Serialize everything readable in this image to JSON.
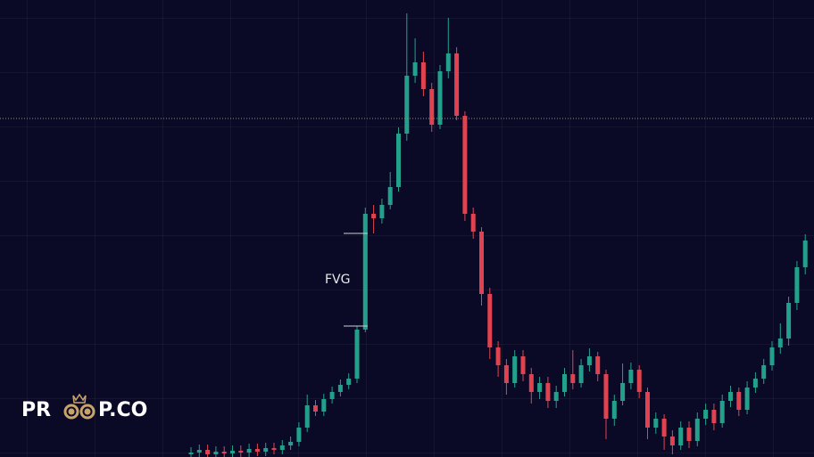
{
  "chart_data": {
    "type": "candlestick",
    "ylim": [
      0,
      513
    ],
    "up_color": "#22a08c",
    "down_color": "#e0434f",
    "background": "#0b0a26",
    "price_line": 380,
    "annotations": [
      {
        "text": "FVG",
        "top": 251,
        "bottom": 147
      }
    ],
    "watermark": {
      "left": "PR",
      "right": "P.CO"
    },
    "open": [
      3,
      5,
      8,
      3,
      6,
      4,
      7,
      5,
      9,
      6,
      10,
      8,
      13,
      17,
      33,
      58,
      51,
      65,
      73,
      81,
      88,
      143,
      273,
      268,
      283,
      303,
      363,
      428,
      443,
      413,
      373,
      433,
      453,
      383,
      273,
      253,
      183,
      123,
      103,
      83,
      113,
      93,
      73,
      83,
      63,
      73,
      93,
      83,
      103,
      113,
      93,
      43,
      63,
      83,
      98,
      73,
      33,
      43,
      23,
      13,
      33,
      18,
      43,
      53,
      38,
      63,
      73,
      53,
      78,
      88,
      103,
      123,
      133,
      173,
      213
    ],
    "high": [
      11,
      14,
      14,
      12,
      12,
      13,
      13,
      15,
      15,
      16,
      16,
      19,
      23,
      39,
      70,
      64,
      71,
      79,
      87,
      94,
      147,
      280,
      283,
      290,
      320,
      370,
      498,
      470,
      455,
      420,
      440,
      493,
      460,
      388,
      280,
      258,
      190,
      130,
      110,
      120,
      120,
      100,
      90,
      90,
      80,
      100,
      120,
      110,
      122,
      118,
      98,
      70,
      105,
      106,
      103,
      78,
      50,
      48,
      30,
      40,
      40,
      50,
      60,
      60,
      70,
      80,
      78,
      85,
      95,
      110,
      130,
      150,
      180,
      220,
      250
    ],
    "low": [
      -2,
      0,
      -2,
      -2,
      -1,
      -1,
      0,
      0,
      1,
      1,
      3,
      3,
      8,
      12,
      28,
      46,
      46,
      60,
      68,
      76,
      83,
      140,
      251,
      262,
      278,
      298,
      355,
      420,
      405,
      365,
      368,
      425,
      378,
      265,
      245,
      170,
      110,
      90,
      70,
      78,
      85,
      60,
      65,
      55,
      55,
      68,
      76,
      78,
      96,
      85,
      20,
      35,
      58,
      76,
      66,
      20,
      26,
      8,
      3,
      8,
      10,
      12,
      36,
      30,
      33,
      56,
      46,
      48,
      72,
      82,
      97,
      116,
      125,
      165,
      205
    ],
    "close": [
      5,
      8,
      3,
      6,
      4,
      7,
      5,
      9,
      6,
      10,
      8,
      13,
      17,
      33,
      58,
      51,
      65,
      73,
      81,
      88,
      143,
      273,
      268,
      283,
      303,
      363,
      428,
      443,
      413,
      373,
      433,
      453,
      383,
      273,
      253,
      183,
      123,
      103,
      83,
      113,
      93,
      73,
      83,
      63,
      73,
      93,
      83,
      103,
      113,
      93,
      43,
      63,
      83,
      98,
      73,
      33,
      43,
      23,
      13,
      33,
      18,
      43,
      53,
      38,
      63,
      73,
      53,
      78,
      88,
      103,
      123,
      133,
      173,
      213,
      243
    ]
  }
}
